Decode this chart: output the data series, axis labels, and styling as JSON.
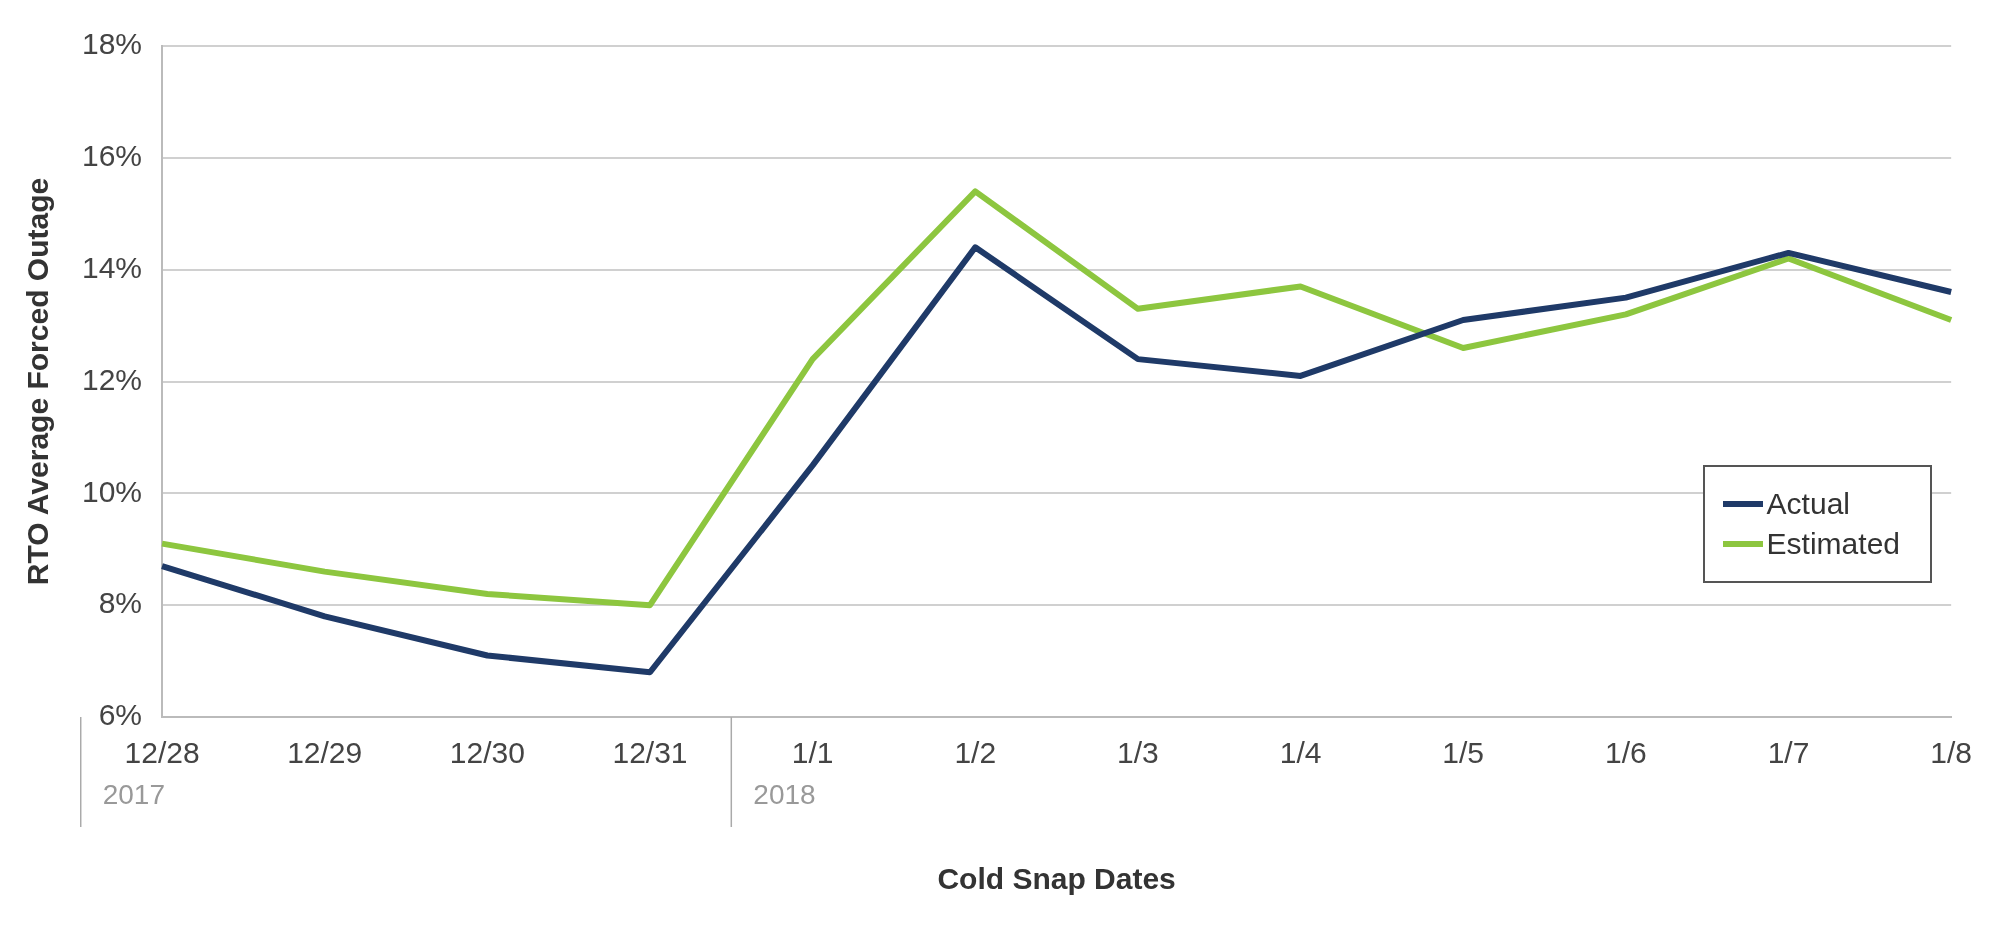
{
  "chart_data": {
    "type": "line",
    "xlabel": "Cold Snap Dates",
    "ylabel": "RTO Average Forced Outage",
    "categories": [
      "12/28",
      "12/29",
      "12/30",
      "12/31",
      "1/1",
      "1/2",
      "1/3",
      "1/4",
      "1/5",
      "1/6",
      "1/7",
      "1/8"
    ],
    "series": [
      {
        "name": "Actual",
        "color": "#1f3a68",
        "values": [
          8.7,
          7.8,
          7.1,
          6.8,
          10.5,
          14.4,
          12.4,
          12.1,
          13.1,
          13.5,
          14.3,
          13.6
        ]
      },
      {
        "name": "Estimated",
        "color": "#8dc63f",
        "values": [
          9.1,
          8.6,
          8.2,
          8.0,
          12.4,
          15.4,
          13.3,
          13.7,
          12.6,
          13.2,
          14.2,
          13.1
        ]
      }
    ],
    "ylim": [
      6,
      18
    ],
    "yticks": [
      {
        "value": 6,
        "label": "6%"
      },
      {
        "value": 8,
        "label": "8%"
      },
      {
        "value": 10,
        "label": "10%"
      },
      {
        "value": 12,
        "label": "12%"
      },
      {
        "value": 14,
        "label": "14%"
      },
      {
        "value": 16,
        "label": "16%"
      },
      {
        "value": 18,
        "label": "18%"
      }
    ],
    "annotations": [
      "2017",
      "2018"
    ],
    "grid": "y",
    "legend": "bottom right",
    "marker": "none",
    "line_style": "solid"
  }
}
